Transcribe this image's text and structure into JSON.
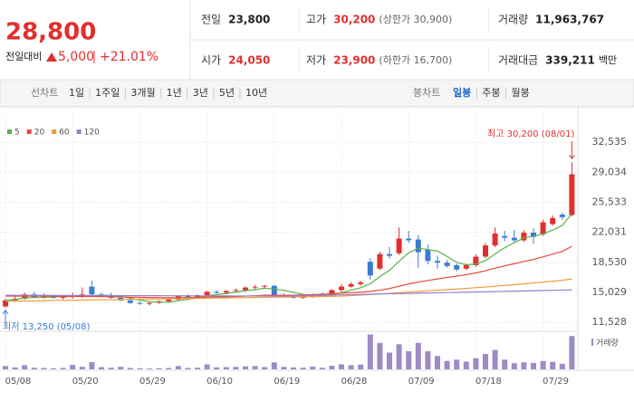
{
  "header": {
    "price": "28,800",
    "change_label": "전일대비",
    "change": "5,000",
    "change_pct": "+21.01%",
    "stats": [
      {
        "label": "전일",
        "value": "23,800",
        "value_color": "#222"
      },
      {
        "label": "고가",
        "value": "30,200",
        "value_color": "#e12f2e",
        "note": "(상한가 30,900)"
      },
      {
        "label": "거래량",
        "value": "11,963,767",
        "value_color": "#222"
      },
      {
        "label": "시가",
        "value": "24,050",
        "value_color": "#e12f2e"
      },
      {
        "label": "저가",
        "value": "23,900",
        "value_color": "#e12f2e",
        "note": "(하한가 16,700)"
      },
      {
        "label": "거래대금",
        "value": "339,211",
        "value_color": "#222",
        "unit": "백만"
      }
    ]
  },
  "tabs": {
    "line_label": "선차트",
    "line_periods": [
      "1일",
      "1주일",
      "3개월",
      "1년",
      "3년",
      "5년",
      "10년"
    ],
    "candle_label": "봉차트",
    "candle_periods": [
      "일봉",
      "주봉",
      "월봉"
    ]
  },
  "chart_data": {
    "type": "candlestick",
    "categories": [
      "05/08",
      null,
      null,
      null,
      null,
      null,
      null,
      "05/20",
      null,
      null,
      null,
      null,
      null,
      null,
      "05/29",
      null,
      null,
      null,
      null,
      null,
      null,
      "06/10",
      null,
      null,
      null,
      null,
      null,
      null,
      "06/19",
      null,
      null,
      null,
      null,
      null,
      null,
      "06/28",
      null,
      null,
      null,
      null,
      null,
      null,
      "07/09",
      null,
      null,
      null,
      null,
      null,
      null,
      "07/18",
      null,
      null,
      null,
      null,
      null,
      null,
      "07/29",
      null,
      null,
      null
    ],
    "up_color": "#e12f2e",
    "down_color": "#3a7bd5",
    "open": [
      13400,
      14100,
      14300,
      14800,
      14500,
      14600,
      14400,
      14500,
      14700,
      15700,
      14800,
      14700,
      14400,
      14100,
      13800,
      13700,
      13800,
      14000,
      14200,
      14600,
      14500,
      14700,
      15100,
      15000,
      15200,
      15300,
      15600,
      15700,
      15800,
      14700,
      14600,
      14400,
      14500,
      14800,
      14700,
      15300,
      15700,
      16000,
      18600,
      17800,
      19500,
      19600,
      21300,
      21200,
      20000,
      18700,
      18500,
      18200,
      17800,
      18200,
      19200,
      20500,
      21600,
      21400,
      21100,
      22000,
      21800,
      23000,
      24100,
      24050
    ],
    "high": [
      14300,
      14600,
      15000,
      15100,
      14900,
      14800,
      14700,
      15000,
      15600,
      16400,
      15000,
      15000,
      14500,
      14200,
      14000,
      13900,
      14100,
      14300,
      14700,
      14800,
      14800,
      15200,
      15300,
      15300,
      15500,
      15700,
      15900,
      15900,
      15900,
      14900,
      14700,
      14600,
      14900,
      15000,
      15400,
      16000,
      16200,
      16400,
      19000,
      19800,
      20300,
      22600,
      22200,
      21700,
      20600,
      19300,
      18800,
      18400,
      18400,
      19500,
      20800,
      22600,
      22200,
      22300,
      22300,
      22500,
      23500,
      24000,
      24300,
      30200
    ],
    "low": [
      13250,
      13900,
      14200,
      14400,
      14300,
      14300,
      14200,
      14300,
      14400,
      14700,
      14500,
      14300,
      14000,
      13700,
      13600,
      13500,
      13700,
      13900,
      14100,
      14400,
      14300,
      14600,
      14900,
      14800,
      15000,
      15100,
      15400,
      15500,
      14500,
      14400,
      14300,
      14300,
      14400,
      14600,
      14600,
      15100,
      15600,
      15800,
      16500,
      17600,
      19000,
      19400,
      20800,
      17900,
      18300,
      17800,
      17900,
      17500,
      17600,
      18000,
      19000,
      20300,
      21000,
      20900,
      20900,
      20700,
      21600,
      22800,
      23500,
      23900
    ],
    "close": [
      14100,
      14300,
      14800,
      14500,
      14600,
      14400,
      14500,
      14700,
      14800,
      14800,
      14700,
      14400,
      14100,
      13800,
      13700,
      13800,
      14000,
      14200,
      14600,
      14500,
      14700,
      15100,
      15000,
      15200,
      15300,
      15600,
      15700,
      15800,
      14700,
      14600,
      14400,
      14500,
      14800,
      14700,
      15300,
      15700,
      16000,
      16200,
      17000,
      19500,
      19300,
      21300,
      21100,
      19700,
      18700,
      18500,
      18100,
      17700,
      18200,
      19200,
      20500,
      21900,
      21400,
      21100,
      22000,
      21500,
      23200,
      23700,
      23800,
      28800
    ],
    "series": [
      {
        "name": "5",
        "color": "#5ab04a",
        "values": [
          14100,
          14200,
          14400,
          14430,
          14460,
          14520,
          14560,
          14540,
          14600,
          14640,
          14700,
          14680,
          14560,
          14360,
          14140,
          13960,
          13880,
          13900,
          14060,
          14220,
          14400,
          14620,
          14780,
          14900,
          15060,
          15240,
          15360,
          15520,
          15420,
          15280,
          15040,
          14800,
          14600,
          14600,
          14740,
          15000,
          15300,
          15580,
          16040,
          16880,
          17600,
          18660,
          19640,
          20180,
          20020,
          19860,
          19220,
          18540,
          18240,
          18340,
          18740,
          19500,
          20240,
          20820,
          21380,
          21580,
          21840,
          22300,
          22840,
          24200
        ]
      },
      {
        "name": "20",
        "color": "#e8483f",
        "values": [
          14600,
          14600,
          14600,
          14600,
          14600,
          14590,
          14580,
          14570,
          14560,
          14550,
          14540,
          14520,
          14500,
          14480,
          14460,
          14440,
          14430,
          14420,
          14420,
          14430,
          14450,
          14480,
          14500,
          14520,
          14560,
          14600,
          14640,
          14700,
          14700,
          14700,
          14710,
          14730,
          14770,
          14820,
          14880,
          14950,
          15000,
          15060,
          15150,
          15300,
          15480,
          15750,
          16020,
          16240,
          16420,
          16600,
          16780,
          16920,
          17100,
          17300,
          17560,
          17860,
          18120,
          18380,
          18640,
          18880,
          19180,
          19500,
          19800,
          20400
        ]
      },
      {
        "name": "60",
        "color": "#f29a3b",
        "values": [
          14000,
          14020,
          14030,
          14050,
          14070,
          14090,
          14100,
          14120,
          14140,
          14150,
          14170,
          14190,
          14200,
          14220,
          14240,
          14260,
          14270,
          14290,
          14310,
          14320,
          14340,
          14360,
          14380,
          14390,
          14410,
          14430,
          14440,
          14460,
          14480,
          14490,
          14510,
          14530,
          14540,
          14560,
          14580,
          14600,
          14660,
          14720,
          14780,
          14850,
          14920,
          15000,
          15080,
          15150,
          15220,
          15290,
          15360,
          15430,
          15500,
          15580,
          15660,
          15750,
          15840,
          15930,
          16030,
          16130,
          16230,
          16340,
          16450,
          16600
        ]
      },
      {
        "name": "120",
        "color": "#9a7fd1",
        "values": [
          14700,
          14697,
          14693,
          14690,
          14686,
          14683,
          14679,
          14676,
          14672,
          14669,
          14666,
          14662,
          14659,
          14655,
          14652,
          14648,
          14645,
          14641,
          14638,
          14634,
          14631,
          14628,
          14624,
          14621,
          14617,
          14614,
          14610,
          14607,
          14603,
          14600,
          14624,
          14648,
          14672,
          14697,
          14721,
          14745,
          14769,
          14793,
          14817,
          14841,
          14866,
          14890,
          14914,
          14938,
          14962,
          14986,
          15010,
          15034,
          15059,
          15083,
          15107,
          15131,
          15155,
          15179,
          15203,
          15228,
          15252,
          15276,
          15300,
          15320
        ]
      }
    ],
    "volume": {
      "name": "거래량",
      "color": "#9c8bc7",
      "ylim": [
        0,
        13000000
      ],
      "values": [
        1200000,
        700000,
        1500000,
        600000,
        500000,
        400000,
        500000,
        1600000,
        900000,
        2600000,
        800000,
        600000,
        900000,
        500000,
        400000,
        300000,
        400000,
        500000,
        1200000,
        500000,
        600000,
        1800000,
        700000,
        800000,
        900000,
        1100000,
        1200000,
        800000,
        2500000,
        900000,
        700000,
        600000,
        1000000,
        600000,
        1300000,
        1800000,
        1500000,
        1700000,
        12500000,
        9500000,
        6000000,
        9000000,
        6500000,
        9500000,
        6500000,
        4800000,
        3000000,
        3500000,
        2800000,
        4000000,
        5500000,
        7000000,
        3500000,
        2200000,
        2500000,
        2300000,
        3000000,
        2700000,
        2000000,
        11963767
      ]
    },
    "ylim": [
      10600,
      33600
    ],
    "yticks": [
      {
        "value": 32535,
        "label": "32,535"
      },
      {
        "value": 29034,
        "label": "29,034"
      },
      {
        "value": 25533,
        "label": "25,533"
      },
      {
        "value": 22031,
        "label": "22,031"
      },
      {
        "value": 18530,
        "label": "18,530"
      },
      {
        "value": 15029,
        "label": "15,029"
      },
      {
        "value": 11528,
        "label": "11,528"
      }
    ],
    "grid": true,
    "annotations": [
      {
        "text": "최고 30,200 (08/01)",
        "color": "#e12f2e"
      },
      {
        "text": "최저 13,250 (05/08)",
        "color": "#3a7bd5"
      }
    ]
  }
}
